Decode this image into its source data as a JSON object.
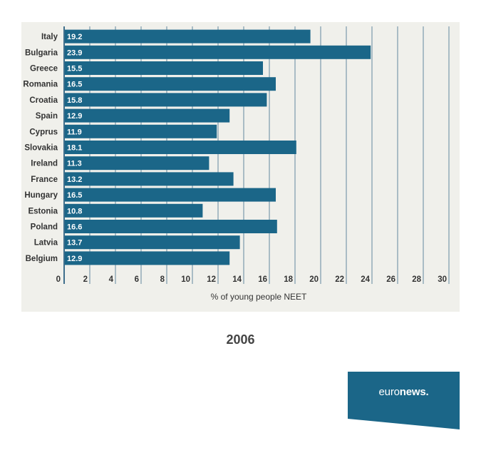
{
  "chart_data": {
    "type": "bar",
    "orientation": "horizontal",
    "categories": [
      "Italy",
      "Bulgaria",
      "Greece",
      "Romania",
      "Croatia",
      "Spain",
      "Cyprus",
      "Slovakia",
      "Ireland",
      "France",
      "Hungary",
      "Estonia",
      "Poland",
      "Latvia",
      "Belgium"
    ],
    "values": [
      19.2,
      23.9,
      15.5,
      16.5,
      15.8,
      12.9,
      11.9,
      18.1,
      11.3,
      13.2,
      16.5,
      10.8,
      16.6,
      13.7,
      12.9
    ],
    "value_labels": [
      "19.2",
      "23.9",
      "15.5",
      "16.5",
      "15.8",
      "12.9",
      "11.9",
      "18.1",
      "11.3",
      "13.2",
      "16.5",
      "10.8",
      "16.6",
      "13.7",
      "12.9"
    ],
    "xlabel": "% of young people NEET",
    "ylabel": "",
    "xlim": [
      0,
      30
    ],
    "xticks": [
      0,
      2,
      4,
      6,
      8,
      10,
      12,
      14,
      16,
      18,
      20,
      22,
      24,
      26,
      28,
      30
    ],
    "grid": true,
    "colors": {
      "bar": "#1b6688",
      "grid": "#3f6f8c",
      "panel": "#f0f0eb"
    }
  },
  "caption": {
    "year": "2006"
  },
  "logo": {
    "text_light": "euro",
    "text_bold": "news",
    "dot": ".",
    "color": "#1b6688"
  }
}
